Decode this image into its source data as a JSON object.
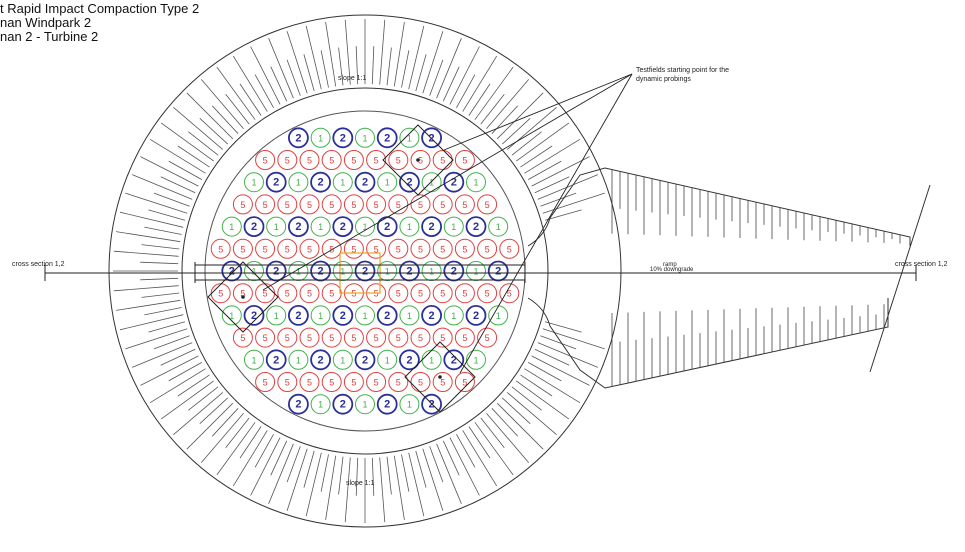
{
  "title_block": {
    "line1": "t Rapid Impact Compaction Type 2",
    "line2": "nan Windpark 2",
    "line3": "nan 2 - Turbine 2"
  },
  "annotations": {
    "testfields_note_line1": "Testfields starting point for the",
    "testfields_note_line2": "dynamic probings",
    "slope_top": "slope 1:1",
    "slope_bottom": "slope 1:1",
    "cross_section_left": "cross section 1,2",
    "cross_section_right": "cross section 1,2",
    "ramp_label_top": "ramp",
    "ramp_label_bottom": "10% downgrade"
  },
  "point_labels": {
    "type1": "1",
    "type2": "2",
    "type5": "5"
  },
  "colors": {
    "type1": "#3fb34a",
    "type2": "#2b2f9a",
    "type5": "#e04040",
    "center": "#f0a020",
    "line": "#333333"
  }
}
